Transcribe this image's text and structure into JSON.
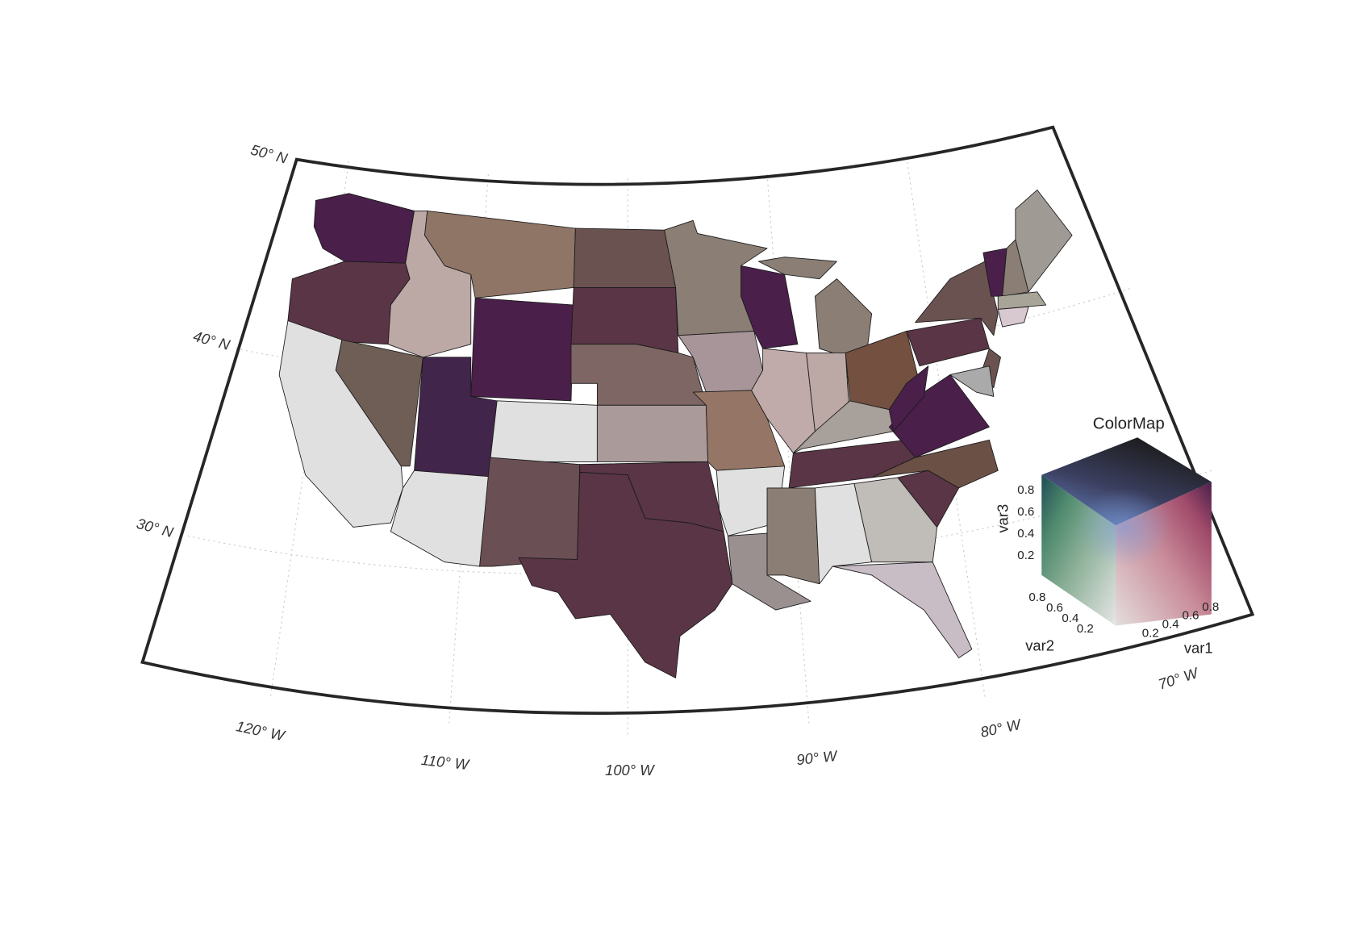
{
  "map": {
    "lat_labels": [
      "50° N",
      "40° N",
      "30° N"
    ],
    "lon_labels": [
      "120° W",
      "110° W",
      "100° W",
      "90° W",
      "80° W",
      "70° W"
    ]
  },
  "legend": {
    "title": "ColorMap",
    "axes": [
      {
        "label": "var1",
        "ticks": [
          0.2,
          0.4,
          0.6,
          0.8
        ]
      },
      {
        "label": "var2",
        "ticks": [
          0.2,
          0.4,
          0.6,
          0.8
        ]
      },
      {
        "label": "var3",
        "ticks": [
          0.2,
          0.4,
          0.6,
          0.8
        ]
      }
    ]
  }
}
